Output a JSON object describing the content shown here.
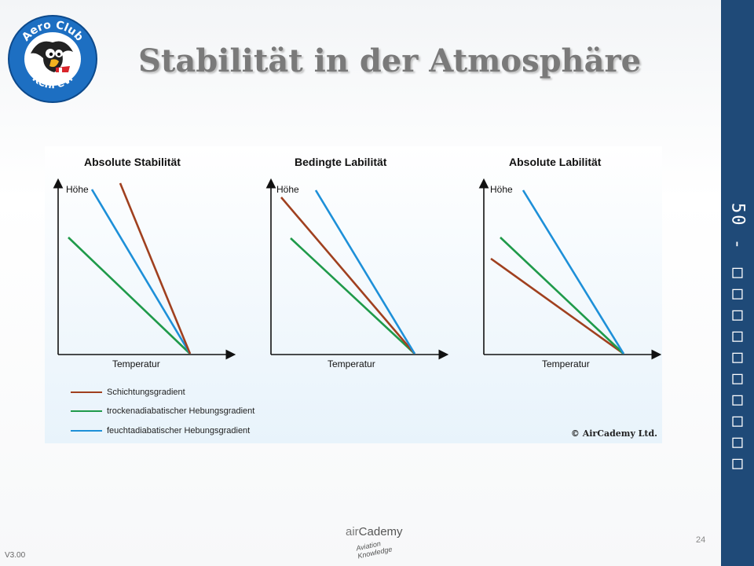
{
  "slide": {
    "title": "Stabilität in der Atmosphäre",
    "side_label": "50 - □□□□□□□□□□",
    "page_number": "24",
    "version": "V3.00"
  },
  "logo": {
    "top_text": "Aero Club",
    "bottom_text": "Kehl eV."
  },
  "brand": {
    "name_part1": "air",
    "name_part2": "Cademy",
    "tagline_line1": "Aviation",
    "tagline_line2": "Knowledge"
  },
  "diagram": {
    "copyright": "© AirCademy Ltd.",
    "colors": {
      "schichtung": "#a0401f",
      "trocken": "#1f9a4a",
      "feucht": "#1e90d8"
    },
    "panels": [
      {
        "title": "Absolute Stabilität",
        "y_label": "Höhe",
        "x_label": "Temperatur"
      },
      {
        "title": "Bedingte Labilität",
        "y_label": "Höhe",
        "x_label": "Temperatur"
      },
      {
        "title": "Absolute Labilität",
        "y_label": "Höhe",
        "x_label": "Temperatur"
      }
    ],
    "legend": [
      {
        "label": "Schichtungsgradient",
        "color": "#a0401f"
      },
      {
        "label": "trockenadiabatischer Hebungsgradient",
        "color": "#1f9a4a"
      },
      {
        "label": "feuchtadiabatischer Hebungsgradient",
        "color": "#1e90d8"
      }
    ]
  }
}
